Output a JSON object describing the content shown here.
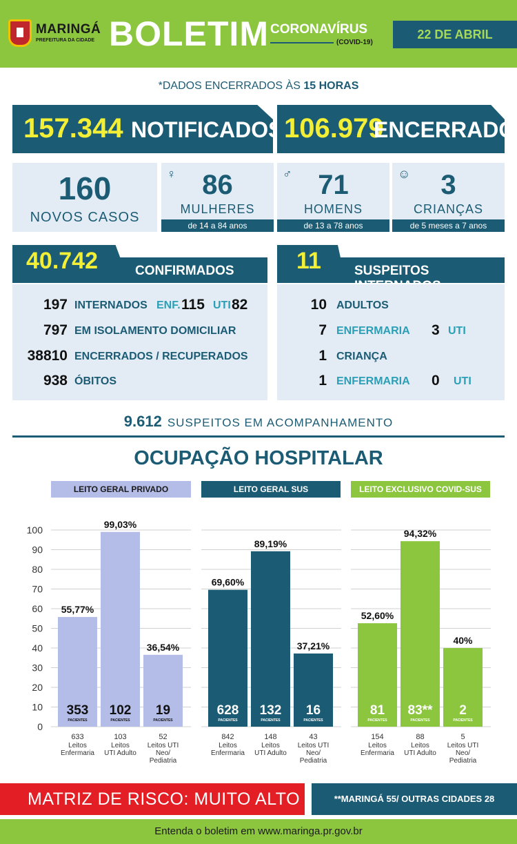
{
  "header": {
    "logo_name": "MARINGÁ",
    "logo_sub": "PREFEITURA DA CIDADE",
    "title": "BOLETIM",
    "subtitle": "CORONAVÍRUS",
    "subtitle_tag": "(COVID-19)",
    "date": "22 DE ABRIL"
  },
  "notice": {
    "prefix": "*DADOS ENCERRADOS ÀS ",
    "hour": "15 HORAS"
  },
  "totals": {
    "notified_value": "157.344",
    "notified_label": "NOTIFICADOS",
    "closed_value": "106.979",
    "closed_label": "ENCERRADOS"
  },
  "new_cases": {
    "value": "160",
    "label": "NOVOS CASOS",
    "women": {
      "value": "86",
      "label": "MULHERES",
      "range": "de 14 a 84 anos",
      "icon": "woman-icon"
    },
    "men": {
      "value": "71",
      "label": "HOMENS",
      "range": "de 13 a 78 anos",
      "icon": "man-icon"
    },
    "children": {
      "value": "3",
      "label": "CRIANÇAS",
      "range": "de 5 meses a 7 anos",
      "icon": "baby-icon"
    }
  },
  "confirmed": {
    "value": "40.742",
    "label": "CONFIRMADOS",
    "interned_value": "197",
    "interned_label": "INTERNADOS",
    "enf_label": "ENF.",
    "enf_value": "115",
    "uti_label": "UTI",
    "uti_value": "82",
    "isolation_value": "797",
    "isolation_label": "EM ISOLAMENTO DOMICILIAR",
    "recovered_value": "38810",
    "recovered_label": "ENCERRADOS / RECUPERADOS",
    "deaths_value": "938",
    "deaths_label": "ÓBITOS"
  },
  "suspects_hosp": {
    "value": "11",
    "label": "SUSPEITOS INTERNADOS",
    "adults_value": "10",
    "adults_label": "ADULTOS",
    "adult_enf_value": "7",
    "adult_enf_label": "ENFERMARIA",
    "adult_uti_value": "3",
    "adult_uti_label": "UTI",
    "child_value": "1",
    "child_label": "CRIANÇA",
    "child_enf_value": "1",
    "child_enf_label": "ENFERMARIA",
    "child_uti_value": "0",
    "child_uti_label": "UTI"
  },
  "monitoring": {
    "value": "9.612",
    "label": "SUSPEITOS EM ACOMPANHAMENTO"
  },
  "occupancy_title": "OCUPAÇÃO HOSPITALAR",
  "chart_data": {
    "type": "bar",
    "ylim": [
      0,
      100
    ],
    "yticks": [
      "100",
      "90",
      "80",
      "70",
      "60",
      "50",
      "40",
      "30",
      "20",
      "10",
      "0"
    ],
    "patients_label": "PACIENTES",
    "groups": [
      {
        "name": "LEITO GERAL PRIVADO",
        "color": "#b4bce8",
        "bars": [
          {
            "pct": 55.77,
            "pct_label": "55,77%",
            "patients": "353",
            "beds": "633",
            "type": [
              "Leitos",
              "Enfermaria"
            ]
          },
          {
            "pct": 99.03,
            "pct_label": "99,03%",
            "patients": "102",
            "beds": "103",
            "type": [
              "Leitos",
              "UTI Adulto"
            ]
          },
          {
            "pct": 36.54,
            "pct_label": "36,54%",
            "patients": "19",
            "beds": "52",
            "type": [
              "Leitos UTI",
              "Neo/",
              "Pediatria"
            ]
          }
        ]
      },
      {
        "name": "LEITO GERAL SUS",
        "color": "#1b5c74",
        "bars": [
          {
            "pct": 69.6,
            "pct_label": "69,60%",
            "patients": "628",
            "beds": "842",
            "type": [
              "Leitos",
              "Enfermaria"
            ]
          },
          {
            "pct": 89.19,
            "pct_label": "89,19%",
            "patients": "132",
            "beds": "148",
            "type": [
              "Leitos",
              "UTI Adulto"
            ]
          },
          {
            "pct": 37.21,
            "pct_label": "37,21%",
            "patients": "16",
            "beds": "43",
            "type": [
              "Leitos UTI",
              "Neo/",
              "Pediatria"
            ]
          }
        ]
      },
      {
        "name": "LEITO EXCLUSIVO COVID-SUS",
        "color": "#8cc63f",
        "bars": [
          {
            "pct": 52.6,
            "pct_label": "52,60%",
            "patients": "81",
            "beds": "154",
            "type": [
              "Leitos",
              "Enfermaria"
            ]
          },
          {
            "pct": 94.32,
            "pct_label": "94,32%",
            "patients": "83**",
            "beds": "88",
            "type": [
              "Leitos",
              "UTI Adulto"
            ]
          },
          {
            "pct": 40,
            "pct_label": "40%",
            "patients": "2",
            "beds": "5",
            "type": [
              "Leitos UTI",
              "Neo/",
              "Pediatria"
            ]
          }
        ]
      }
    ]
  },
  "footer": {
    "risk": "MATRIZ DE RISCO: MUITO ALTO",
    "note": "**MARINGÁ 55/ OUTRAS CIDADES 28",
    "link": "Entenda o boletim em www.maringa.pr.gov.br"
  }
}
